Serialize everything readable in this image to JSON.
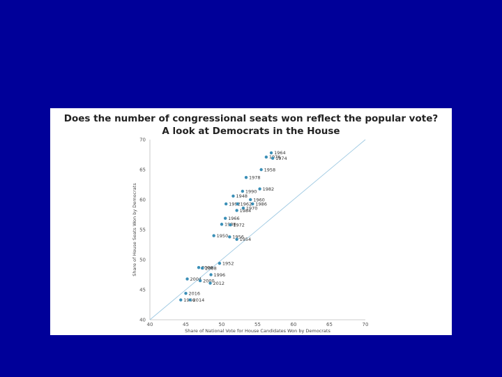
{
  "chart_data": {
    "type": "scatter",
    "title": "Does the number of congressional seats won reflect the popular vote?",
    "subtitle": "A look at Democrats in the House",
    "xlabel": "Share of National Vote for House Candidates Won by Democrats",
    "ylabel": "Share of House Seats Won by Democrats",
    "xlim": [
      40,
      70
    ],
    "ylim": [
      40,
      70
    ],
    "xticks": [
      40,
      45,
      50,
      55,
      60,
      65,
      70
    ],
    "yticks": [
      40,
      45,
      50,
      55,
      60,
      65,
      70
    ],
    "grid": false,
    "reference_line": "y = x",
    "colors": {
      "points": "#3a8fb7",
      "reference_line": "#9ec9e2"
    },
    "points": [
      {
        "label": "1964",
        "x": 56.9,
        "y": 67.8
      },
      {
        "label": "1976",
        "x": 56.2,
        "y": 67.1
      },
      {
        "label": "1974",
        "x": 57.1,
        "y": 66.9
      },
      {
        "label": "1958",
        "x": 55.5,
        "y": 65.0
      },
      {
        "label": "1978",
        "x": 53.4,
        "y": 63.7
      },
      {
        "label": "1982",
        "x": 55.3,
        "y": 61.8
      },
      {
        "label": "1990",
        "x": 52.9,
        "y": 61.4
      },
      {
        "label": "1948",
        "x": 51.6,
        "y": 60.6
      },
      {
        "label": "1960",
        "x": 54.0,
        "y": 60.0
      },
      {
        "label": "1986",
        "x": 54.3,
        "y": 59.3
      },
      {
        "label": "1992",
        "x": 50.6,
        "y": 59.3
      },
      {
        "label": "1962",
        "x": 52.2,
        "y": 59.3
      },
      {
        "label": "1970",
        "x": 53.0,
        "y": 58.6
      },
      {
        "label": "1984",
        "x": 52.1,
        "y": 58.2
      },
      {
        "label": "1966",
        "x": 50.5,
        "y": 56.9
      },
      {
        "label": "1988",
        "x": 50.0,
        "y": 55.9
      },
      {
        "label": "1972",
        "x": 51.2,
        "y": 55.8
      },
      {
        "label": "1950",
        "x": 48.9,
        "y": 54.0
      },
      {
        "label": "1956",
        "x": 51.1,
        "y": 53.8
      },
      {
        "label": "1954",
        "x": 52.1,
        "y": 53.4
      },
      {
        "label": "1952",
        "x": 49.7,
        "y": 49.4
      },
      {
        "label": "2006",
        "x": 46.8,
        "y": 48.7
      },
      {
        "label": "2008",
        "x": 47.3,
        "y": 48.6
      },
      {
        "label": "1996",
        "x": 48.5,
        "y": 47.5
      },
      {
        "label": "2004",
        "x": 45.2,
        "y": 46.8
      },
      {
        "label": "2000",
        "x": 47.0,
        "y": 46.5
      },
      {
        "label": "2012",
        "x": 48.4,
        "y": 46.1
      },
      {
        "label": "2016",
        "x": 45.0,
        "y": 44.4
      },
      {
        "label": "1946",
        "x": 44.3,
        "y": 43.3
      },
      {
        "label": "2014",
        "x": 45.6,
        "y": 43.3
      }
    ]
  }
}
